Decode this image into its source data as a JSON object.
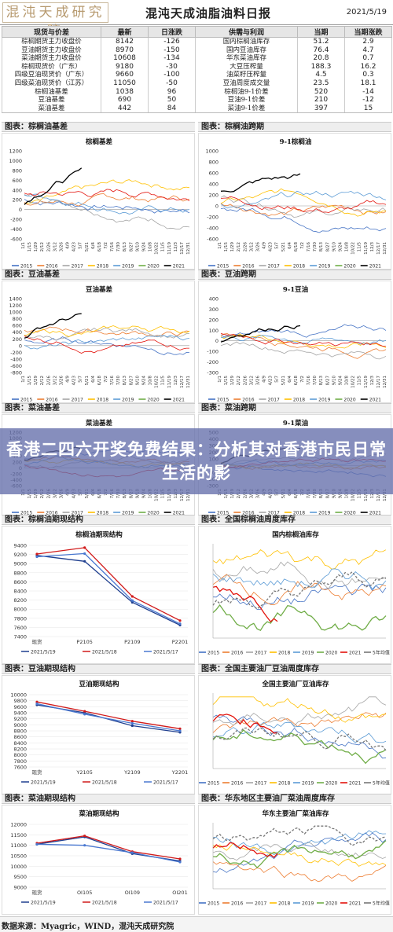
{
  "header": {
    "logo_text": "混沌天成研究院",
    "title": "混沌天成油脂油料日报",
    "date": "2021/5/19"
  },
  "table": {
    "headers": [
      "现货与价差",
      "最新",
      "日涨跌",
      "供需与利润",
      "当期",
      "当期涨跌"
    ],
    "rows": [
      [
        "棕榈期货主力收盘价",
        "8142",
        "-126",
        "国内棕榈油库存",
        "51.2",
        "2.9"
      ],
      [
        "豆油期货主力收盘价",
        "8970",
        "-150",
        "国内豆油库存",
        "76.4",
        "4.7"
      ],
      [
        "菜油期货主力收盘价",
        "10608",
        "-134",
        "华东菜油库存",
        "20.8",
        "0.7"
      ],
      [
        "棕榈现货价（广东）",
        "9180",
        "-30",
        "大豆压榨量",
        "188.3",
        "16.2"
      ],
      [
        "四级豆油现货价（广东）",
        "9660",
        "-100",
        "油菜籽压榨量",
        "4.5",
        "0.3"
      ],
      [
        "四级菜油现货价（江苏）",
        "11050",
        "-50",
        "豆油周度成交量",
        "23.5",
        "18.1"
      ],
      [
        "棕榈油基差",
        "1038",
        "96",
        "棕榈油9-1价差",
        "520",
        "-14"
      ],
      [
        "豆油基差",
        "690",
        "50",
        "豆油9-1价差",
        "210",
        "-12"
      ],
      [
        "菜油基差",
        "442",
        "84",
        "菜油9-1价差",
        "397",
        "15"
      ]
    ]
  },
  "sections": {
    "s1l": "图表：棕榈油基差",
    "s1r": "图表：棕榈油跨期",
    "s2l": "图表：豆油基差",
    "s2r": "图表：豆油跨期",
    "s3l": "图表：菜油基差",
    "s3r": "图表：菜油跨期",
    "s4l": "图表：棕榈油期现结构",
    "s4r": "图表：全国棕榈油周度库存",
    "s5l": "图表：豆油期现结构",
    "s5r": "图表：全国主要油厂豆油周度库存",
    "s6l": "图表：菜油期现结构",
    "s6r": "图表：华东地区主要油厂菜油周度库存"
  },
  "banner": {
    "text": "香港二四六开奖免费结果：分析其对香港市民日常生活的影"
  },
  "footer": {
    "text": "数据来源：Myagric，WIND，混沌天成研究院"
  },
  "colors": {
    "y2015": "#4472c4",
    "y2016": "#ed7d31",
    "y2017": "#a5a5a5",
    "y2018": "#ffc000",
    "y2019": "#5b9bd5",
    "y2020": "#70ad47",
    "y2021": "#000000",
    "y2021red": "#e3120b"
  },
  "chart_data": [
    {
      "type": "line",
      "title": "棕榈基差",
      "x": [
        "1/1",
        "1/8",
        "1/15",
        "1/22",
        "1/29",
        "2/5",
        "2/12",
        "2/19",
        "2/26",
        "3/5",
        "3/12",
        "3/19",
        "3/26",
        "4/2",
        "4/9",
        "4/16",
        "4/23",
        "4/30",
        "5/7",
        "5/14",
        "5/21",
        "5/28",
        "6/4",
        "6/11",
        "6/18",
        "6/25",
        "7/2",
        "7/9",
        "7/16",
        "7/23",
        "7/30",
        "8/6",
        "8/13",
        "8/20",
        "8/27",
        "9/3",
        "9/10",
        "9/17",
        "9/24",
        "10/1",
        "10/8",
        "10/15",
        "10/22",
        "10/29",
        "11/5",
        "11/12",
        "11/19",
        "11/26",
        "12/3",
        "12/10",
        "12/17",
        "12/24",
        "12/31"
      ],
      "ylim": [
        -600,
        1200
      ],
      "yticks": [
        -600,
        -400,
        -200,
        0,
        200,
        400,
        600,
        800,
        1000,
        1200
      ],
      "legend": [
        "2015",
        "2016",
        "2017",
        "2018",
        "2019",
        "2020",
        "2021"
      ],
      "series": [
        {
          "name": "2015",
          "values": [
            120,
            110,
            100,
            90,
            80,
            70,
            60,
            50,
            60,
            70,
            80,
            100,
            110,
            120,
            130,
            110,
            100,
            90,
            80,
            100,
            120,
            140,
            130,
            120,
            110,
            100,
            90,
            80,
            70,
            60,
            50,
            40,
            30,
            20,
            10,
            0,
            -20,
            -40,
            -60,
            -80,
            -100,
            -120,
            -140,
            -160,
            -180,
            -200,
            -220,
            -240,
            -260,
            -280,
            -300,
            -320,
            -340
          ]
        },
        {
          "name": "2016",
          "values": [
            60,
            40,
            20,
            0,
            -20,
            -40,
            -60,
            -80,
            -100,
            -60,
            -40,
            -20,
            0,
            20,
            40,
            60,
            80,
            100,
            120,
            140,
            160,
            180,
            200,
            220,
            240,
            260,
            280,
            300,
            320,
            340,
            360,
            380,
            400,
            380,
            360,
            340,
            320,
            300,
            280,
            260,
            240,
            220,
            200,
            180,
            160,
            140,
            120,
            100,
            80,
            60,
            40,
            20,
            0
          ]
        },
        {
          "name": "2017",
          "values": [
            200,
            180,
            160,
            140,
            120,
            100,
            80,
            60,
            40,
            20,
            0,
            -20,
            -40,
            -60,
            -80,
            -100,
            -80,
            -60,
            -40,
            -20,
            0,
            20,
            40,
            60,
            80,
            100,
            120,
            140,
            160,
            180,
            200,
            220,
            240,
            260,
            280,
            300,
            320,
            340,
            360,
            380,
            400,
            420,
            440,
            460,
            480,
            500,
            520,
            540,
            560,
            580,
            600,
            620,
            640
          ]
        },
        {
          "name": "2018",
          "values": [
            100,
            90,
            80,
            70,
            60,
            50,
            40,
            30,
            20,
            10,
            0,
            -10,
            -20,
            -30,
            -40,
            -50,
            -60,
            -70,
            -80,
            -90,
            -100,
            -90,
            -80,
            -70,
            -60,
            -50,
            -40,
            -30,
            -20,
            -10,
            0,
            10,
            20,
            30,
            40,
            50,
            60,
            70,
            80,
            90,
            100,
            110,
            120,
            130,
            140,
            150,
            160,
            170,
            180,
            190,
            200,
            210,
            220
          ]
        },
        {
          "name": "2019",
          "values": [
            50,
            40,
            30,
            20,
            10,
            0,
            -10,
            -20,
            -30,
            -40,
            -50,
            -60,
            -70,
            -80,
            -90,
            -100,
            -110,
            -120,
            -130,
            -140,
            -150,
            -160,
            -170,
            -180,
            -190,
            -200,
            -190,
            -180,
            -170,
            -160,
            -150,
            -140,
            -130,
            -120,
            -110,
            -100,
            -90,
            -80,
            -70,
            -60,
            -50,
            -40,
            -30,
            -20,
            -10,
            0,
            10,
            20,
            30,
            40,
            50,
            60,
            70
          ]
        },
        {
          "name": "2020",
          "values": [
            300,
            320,
            340,
            360,
            380,
            400,
            420,
            440,
            460,
            480,
            500,
            450,
            400,
            350,
            300,
            250,
            200,
            150,
            100,
            50,
            0,
            -50,
            -100,
            -150,
            -200,
            -150,
            -100,
            -50,
            0,
            50,
            100,
            150,
            200,
            250,
            300,
            350,
            400,
            450,
            500,
            550,
            600,
            550,
            500,
            450,
            400,
            350,
            300,
            350,
            400,
            450,
            500,
            450,
            400
          ]
        },
        {
          "name": "2021",
          "values": [
            400,
            500,
            600,
            700,
            750,
            800,
            900,
            950,
            1000,
            900,
            950,
            1000,
            1050,
            980,
            1000,
            1050,
            1020,
            1040,
            1038,
            null,
            null,
            null,
            null,
            null,
            null,
            null,
            null,
            null,
            null,
            null,
            null,
            null,
            null,
            null,
            null,
            null,
            null,
            null,
            null,
            null,
            null,
            null,
            null,
            null,
            null,
            null,
            null,
            null,
            null,
            null,
            null,
            null,
            null
          ]
        }
      ]
    },
    {
      "type": "line",
      "title": "9-1棕榈油",
      "ylim": [
        -600,
        1000
      ],
      "yticks": [
        -600,
        -400,
        -200,
        0,
        200,
        400,
        600,
        800,
        1000
      ],
      "legend": [
        "2015",
        "2016",
        "2017",
        "2018",
        "2019",
        "2020",
        "2021"
      ],
      "series_note": "2021 series ends at 520"
    },
    {
      "type": "line",
      "title": "豆油基差",
      "ylim": [
        -800,
        1400
      ],
      "yticks": [
        -800,
        -600,
        -400,
        -200,
        0,
        200,
        400,
        600,
        800,
        1000,
        1200,
        1400
      ],
      "legend": [
        "2015",
        "2016",
        "2017",
        "2018",
        "2019",
        "2020",
        "2021"
      ]
    },
    {
      "type": "line",
      "title": "9-1豆油",
      "ylim": [
        -300,
        400
      ],
      "yticks": [
        -300,
        -200,
        -100,
        0,
        100,
        200,
        300,
        400
      ],
      "legend": [
        "2015",
        "2016",
        "2017",
        "2018",
        "2019",
        "2020",
        "2021"
      ]
    },
    {
      "type": "line",
      "title": "菜油基差",
      "ylim": [
        -600,
        1200
      ],
      "yticks": [
        -600,
        -400,
        -200,
        0,
        200,
        400,
        600,
        800,
        1000,
        1200
      ],
      "legend": [
        "2015",
        "2016",
        "2017",
        "2018",
        "2019",
        "2020",
        "2021"
      ]
    },
    {
      "type": "line",
      "title": "9-1菜油",
      "ylim": [
        -300,
        500
      ],
      "yticks": [
        -300,
        -200,
        -100,
        0,
        100,
        200,
        300,
        400,
        500
      ],
      "legend": [
        "2015",
        "2016",
        "2017",
        "2018",
        "2019",
        "2020",
        "2021"
      ]
    },
    {
      "type": "line",
      "title": "棕榈油期现结构",
      "categories": [
        "现货",
        "P2105",
        "P2109",
        "P2201"
      ],
      "ylim": [
        7400,
        9400
      ],
      "yticks": [
        7400,
        7600,
        7800,
        8000,
        8200,
        8400,
        8600,
        8800,
        9000,
        9200,
        9400
      ],
      "series": [
        {
          "name": "2021/5/19",
          "values": [
            9180,
            9050,
            8150,
            7650
          ]
        },
        {
          "name": "2021/5/18",
          "values": [
            9210,
            9350,
            8280,
            7750
          ]
        },
        {
          "name": "2021/5/17",
          "values": [
            9150,
            9220,
            8190,
            7680
          ]
        }
      ]
    },
    {
      "type": "line",
      "title": "国内棕榈油库存",
      "legend": [
        "2015",
        "2016",
        "2017",
        "2018",
        "2019",
        "2020",
        "2021",
        "5年均值"
      ]
    },
    {
      "type": "line",
      "title": "豆油期现结构",
      "categories": [
        "现货",
        "Y2105",
        "Y2109",
        "Y2201"
      ],
      "ylim": [
        7600,
        10000
      ],
      "yticks": [
        7600,
        7800,
        8000,
        8200,
        8400,
        8600,
        8800,
        9000,
        9200,
        9400,
        9600,
        9800,
        10000
      ],
      "series": [
        {
          "name": "2021/5/19",
          "values": [
            9660,
            9400,
            8970,
            8750
          ]
        },
        {
          "name": "2021/5/18",
          "values": [
            9760,
            9450,
            9120,
            8870
          ]
        },
        {
          "name": "2021/5/17",
          "values": [
            9700,
            9350,
            9050,
            8800
          ]
        }
      ]
    },
    {
      "type": "line",
      "title": "全国主要油厂豆油库存",
      "legend": [
        "2015",
        "2016",
        "2017",
        "2018",
        "2019",
        "2020",
        "2021",
        "5年均值"
      ]
    },
    {
      "type": "line",
      "title": "菜油期现结构",
      "categories": [
        "现货",
        "OI105",
        "OI109",
        "OI201"
      ],
      "ylim": [
        9000,
        12000
      ],
      "yticks": [
        9000,
        9500,
        10000,
        10500,
        11000,
        11500,
        12000
      ],
      "series": [
        {
          "name": "2021/5/19",
          "values": [
            11050,
            11400,
            10600,
            10250
          ]
        },
        {
          "name": "2021/5/18",
          "values": [
            11100,
            11450,
            10700,
            10350
          ]
        },
        {
          "name": "2021/5/17",
          "values": [
            11050,
            11000,
            10650,
            10200
          ]
        }
      ]
    },
    {
      "type": "line",
      "title": "华东主要油厂菜油库存",
      "legend": [
        "2015",
        "2016",
        "2017",
        "2018",
        "2019",
        "2020",
        "2021",
        "5年均值"
      ]
    }
  ]
}
